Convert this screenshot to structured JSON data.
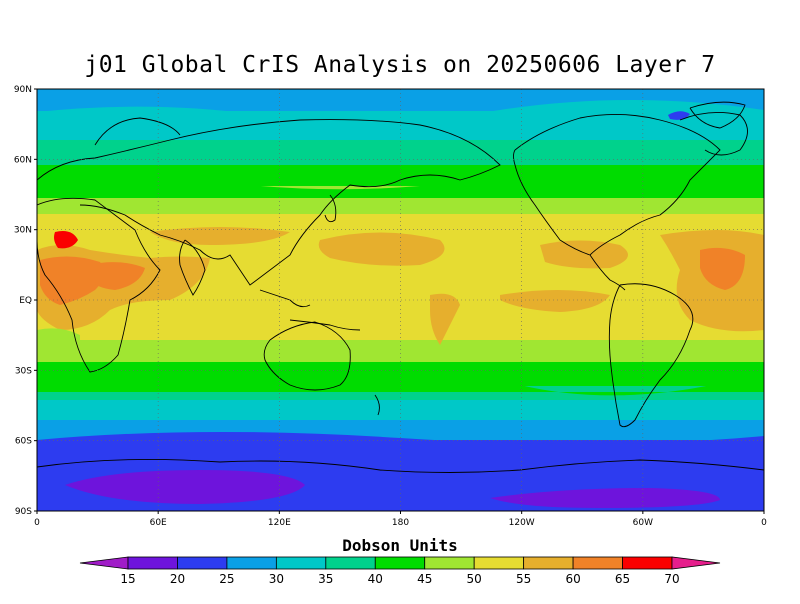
{
  "title": "j01 Global CrIS Analysis on 20250606 Layer 7",
  "map": {
    "lat_ticks": [
      "90N",
      "60N",
      "30N",
      "EQ",
      "30S",
      "60S",
      "90S"
    ],
    "lon_ticks": [
      "0",
      "60E",
      "120E",
      "180",
      "120W",
      "60W",
      "0"
    ],
    "grid": "dotted"
  },
  "colorbar": {
    "title": "Dobson Units",
    "levels": [
      "15",
      "20",
      "25",
      "30",
      "35",
      "40",
      "45",
      "50",
      "55",
      "60",
      "65",
      "70"
    ],
    "colors": [
      "#a01cc8",
      "#6e14dc",
      "#2d3cf0",
      "#0aa0e6",
      "#00c8c8",
      "#00d28c",
      "#00dc00",
      "#a0e632",
      "#e6dc32",
      "#e6af2d",
      "#f08228",
      "#fa0000",
      "#e61e8c"
    ]
  }
}
